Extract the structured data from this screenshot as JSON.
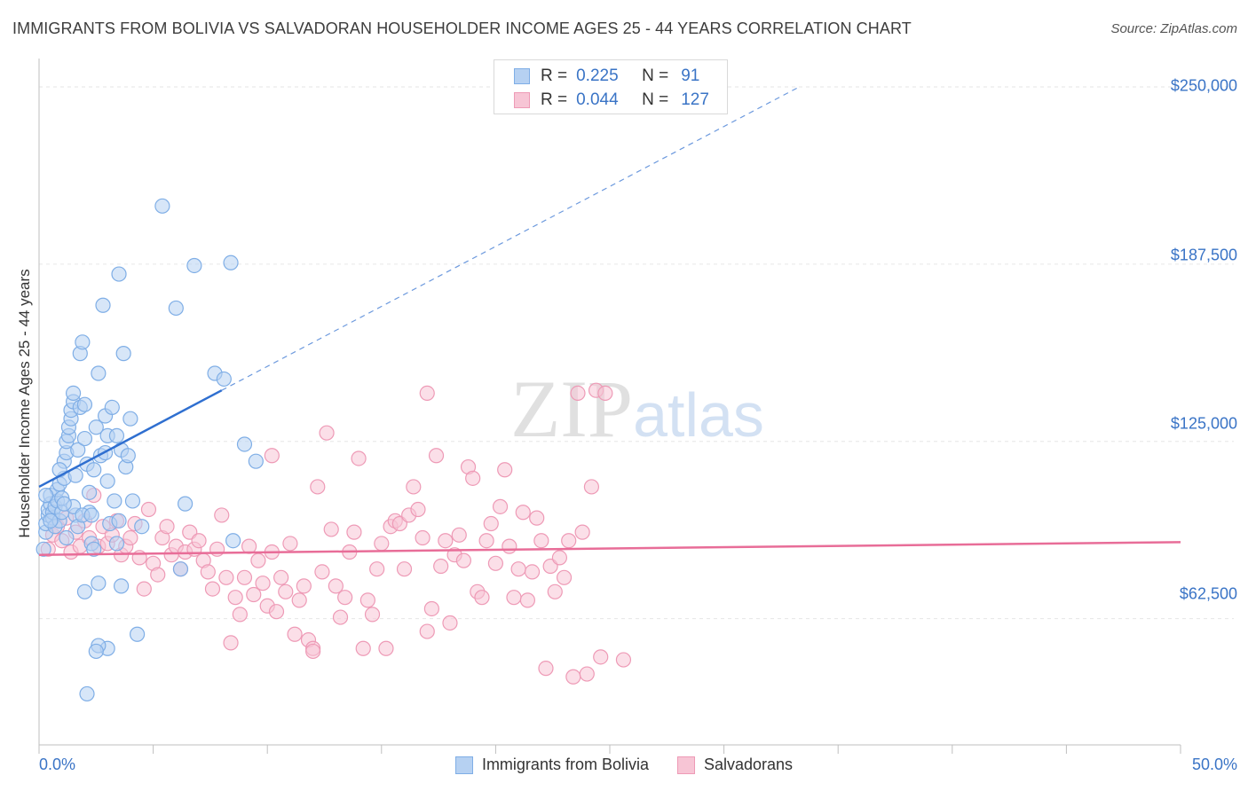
{
  "title": "IMMIGRANTS FROM BOLIVIA VS SALVADORAN HOUSEHOLDER INCOME AGES 25 - 44 YEARS CORRELATION CHART",
  "source": "Source: ZipAtlas.com",
  "watermark": "ZIPatlas",
  "colors": {
    "blue_fill": "#b6d1f2",
    "blue_stroke": "#7faee6",
    "blue_line": "#2f6fd0",
    "pink_fill": "#f7c5d5",
    "pink_stroke": "#ee9ab6",
    "pink_line": "#e86d98",
    "tick_text": "#3a74c6",
    "grid": "#e6e6e6"
  },
  "stats": [
    {
      "r_label": "R =",
      "r_value": "0.225",
      "n_label": "N =",
      "n_value": "91"
    },
    {
      "r_label": "R =",
      "r_value": "0.044",
      "n_label": "N =",
      "n_value": "127"
    }
  ],
  "chart_data": {
    "type": "scatter",
    "title": "IMMIGRANTS FROM BOLIVIA VS SALVADORAN HOUSEHOLDER INCOME AGES 25 - 44 YEARS CORRELATION CHART",
    "xlabel": "",
    "ylabel": "Householder Income Ages 25 - 44 years",
    "xlim": [
      0,
      50
    ],
    "ylim": [
      18000,
      260000
    ],
    "x_tick_labels": [
      "0.0%",
      "50.0%"
    ],
    "y_ticks": [
      62500,
      125000,
      187500,
      250000
    ],
    "y_tick_labels": [
      "$62,500",
      "$125,000",
      "$187,500",
      "$250,000"
    ],
    "grid": true,
    "legend_position": "bottom-center",
    "series": [
      {
        "name": "Immigrants from Bolivia",
        "color": "#7faee6",
        "trend": {
          "x": [
            0,
            8.0
          ],
          "y": [
            109000,
            143000
          ],
          "extended_to": [
            33.3,
            250000
          ]
        },
        "points": [
          [
            0.2,
            87000
          ],
          [
            0.3,
            93000
          ],
          [
            0.3,
            96000
          ],
          [
            0.4,
            99000
          ],
          [
            0.4,
            101000
          ],
          [
            0.5,
            103000
          ],
          [
            0.5,
            106000
          ],
          [
            0.6,
            98000
          ],
          [
            0.6,
            100000
          ],
          [
            0.7,
            95000
          ],
          [
            0.7,
            102000
          ],
          [
            0.8,
            104000
          ],
          [
            0.8,
            108000
          ],
          [
            0.9,
            97000
          ],
          [
            0.9,
            110000
          ],
          [
            1.0,
            100000
          ],
          [
            1.0,
            105000
          ],
          [
            1.1,
            112000
          ],
          [
            1.1,
            118000
          ],
          [
            1.2,
            121000
          ],
          [
            1.2,
            125000
          ],
          [
            1.3,
            127000
          ],
          [
            1.3,
            130000
          ],
          [
            1.4,
            133000
          ],
          [
            1.4,
            136000
          ],
          [
            1.5,
            139000
          ],
          [
            1.5,
            142000
          ],
          [
            1.6,
            113000
          ],
          [
            1.6,
            99000
          ],
          [
            1.7,
            95000
          ],
          [
            1.7,
            122000
          ],
          [
            1.8,
            137000
          ],
          [
            1.8,
            156000
          ],
          [
            1.9,
            160000
          ],
          [
            2.0,
            138000
          ],
          [
            2.0,
            126000
          ],
          [
            2.1,
            117000
          ],
          [
            2.2,
            107000
          ],
          [
            2.2,
            100000
          ],
          [
            2.3,
            89000
          ],
          [
            2.4,
            115000
          ],
          [
            2.5,
            130000
          ],
          [
            2.6,
            149000
          ],
          [
            2.7,
            120000
          ],
          [
            2.8,
            173000
          ],
          [
            2.9,
            134000
          ],
          [
            3.0,
            127000
          ],
          [
            3.0,
            111000
          ],
          [
            3.1,
            96000
          ],
          [
            3.2,
            137000
          ],
          [
            3.3,
            104000
          ],
          [
            3.4,
            89000
          ],
          [
            3.5,
            184000
          ],
          [
            3.6,
            122000
          ],
          [
            3.7,
            156000
          ],
          [
            3.8,
            116000
          ],
          [
            3.9,
            120000
          ],
          [
            4.0,
            133000
          ],
          [
            4.1,
            104000
          ],
          [
            2.4,
            87000
          ],
          [
            2.6,
            75000
          ],
          [
            2.0,
            72000
          ],
          [
            3.0,
            52000
          ],
          [
            2.6,
            53000
          ],
          [
            2.1,
            36000
          ],
          [
            2.5,
            51000
          ],
          [
            3.6,
            74000
          ],
          [
            4.3,
            57000
          ],
          [
            3.4,
            127000
          ],
          [
            5.4,
            208000
          ],
          [
            6.0,
            172000
          ],
          [
            6.2,
            80000
          ],
          [
            6.4,
            103000
          ],
          [
            6.8,
            187000
          ],
          [
            8.4,
            188000
          ],
          [
            7.7,
            149000
          ],
          [
            8.5,
            90000
          ],
          [
            9.0,
            124000
          ],
          [
            9.5,
            118000
          ],
          [
            8.1,
            147000
          ],
          [
            1.2,
            91000
          ],
          [
            0.9,
            115000
          ],
          [
            0.5,
            97000
          ],
          [
            1.5,
            102000
          ],
          [
            1.9,
            99000
          ],
          [
            0.3,
            106000
          ],
          [
            2.9,
            121000
          ],
          [
            3.5,
            97000
          ],
          [
            4.5,
            95000
          ],
          [
            1.1,
            103000
          ],
          [
            2.3,
            99000
          ]
        ]
      },
      {
        "name": "Salvadorans",
        "color": "#ee9ab6",
        "trend": {
          "x": [
            0,
            50
          ],
          "y": [
            85000,
            89500
          ]
        },
        "points": [
          [
            0.4,
            87000
          ],
          [
            0.6,
            92000
          ],
          [
            0.8,
            95000
          ],
          [
            1.0,
            90000
          ],
          [
            1.2,
            98000
          ],
          [
            1.4,
            86000
          ],
          [
            1.6,
            93000
          ],
          [
            1.8,
            88000
          ],
          [
            2.0,
            97000
          ],
          [
            2.2,
            91000
          ],
          [
            2.4,
            106000
          ],
          [
            2.6,
            88000
          ],
          [
            2.8,
            95000
          ],
          [
            3.0,
            89000
          ],
          [
            3.2,
            92000
          ],
          [
            3.4,
            97000
          ],
          [
            3.6,
            85000
          ],
          [
            3.8,
            88000
          ],
          [
            4.0,
            91000
          ],
          [
            4.2,
            96000
          ],
          [
            4.4,
            84000
          ],
          [
            4.6,
            73000
          ],
          [
            4.8,
            101000
          ],
          [
            5.0,
            82000
          ],
          [
            5.2,
            78000
          ],
          [
            5.4,
            91000
          ],
          [
            5.6,
            95000
          ],
          [
            5.8,
            85000
          ],
          [
            6.0,
            88000
          ],
          [
            6.2,
            80000
          ],
          [
            6.4,
            86000
          ],
          [
            6.6,
            93000
          ],
          [
            6.8,
            87000
          ],
          [
            7.0,
            90000
          ],
          [
            7.2,
            83000
          ],
          [
            7.4,
            79000
          ],
          [
            7.6,
            73000
          ],
          [
            7.8,
            87000
          ],
          [
            8.0,
            99000
          ],
          [
            8.2,
            77000
          ],
          [
            8.4,
            54000
          ],
          [
            8.6,
            70000
          ],
          [
            8.8,
            64000
          ],
          [
            9.0,
            77000
          ],
          [
            9.2,
            88000
          ],
          [
            9.4,
            71000
          ],
          [
            9.6,
            83000
          ],
          [
            9.8,
            75000
          ],
          [
            10.0,
            67000
          ],
          [
            10.2,
            86000
          ],
          [
            10.4,
            65000
          ],
          [
            10.6,
            77000
          ],
          [
            10.8,
            72000
          ],
          [
            11.0,
            89000
          ],
          [
            11.2,
            57000
          ],
          [
            11.4,
            69000
          ],
          [
            11.6,
            74000
          ],
          [
            11.8,
            55000
          ],
          [
            12.0,
            52000
          ],
          [
            12.2,
            109000
          ],
          [
            12.4,
            79000
          ],
          [
            12.6,
            128000
          ],
          [
            12.8,
            94000
          ],
          [
            13.0,
            74000
          ],
          [
            13.2,
            63000
          ],
          [
            13.4,
            70000
          ],
          [
            13.6,
            86000
          ],
          [
            13.8,
            93000
          ],
          [
            14.0,
            119000
          ],
          [
            14.2,
            52000
          ],
          [
            14.4,
            69000
          ],
          [
            14.6,
            64000
          ],
          [
            14.8,
            80000
          ],
          [
            15.0,
            89000
          ],
          [
            15.2,
            52000
          ],
          [
            15.4,
            95000
          ],
          [
            15.6,
            97000
          ],
          [
            15.8,
            96000
          ],
          [
            16.0,
            80000
          ],
          [
            16.2,
            99000
          ],
          [
            16.4,
            109000
          ],
          [
            16.6,
            101000
          ],
          [
            16.8,
            91000
          ],
          [
            17.0,
            58000
          ],
          [
            17.2,
            66000
          ],
          [
            17.4,
            120000
          ],
          [
            17.6,
            81000
          ],
          [
            17.8,
            90000
          ],
          [
            18.0,
            61000
          ],
          [
            18.2,
            85000
          ],
          [
            18.4,
            92000
          ],
          [
            18.6,
            83000
          ],
          [
            18.8,
            116000
          ],
          [
            19.0,
            112000
          ],
          [
            19.2,
            72000
          ],
          [
            19.4,
            70000
          ],
          [
            19.6,
            90000
          ],
          [
            19.8,
            96000
          ],
          [
            20.0,
            82000
          ],
          [
            20.2,
            102000
          ],
          [
            20.4,
            115000
          ],
          [
            20.6,
            88000
          ],
          [
            20.8,
            70000
          ],
          [
            21.0,
            80000
          ],
          [
            21.2,
            100000
          ],
          [
            21.4,
            69000
          ],
          [
            21.6,
            79000
          ],
          [
            21.8,
            98000
          ],
          [
            22.0,
            90000
          ],
          [
            22.2,
            45000
          ],
          [
            22.4,
            81000
          ],
          [
            22.6,
            72000
          ],
          [
            22.8,
            84000
          ],
          [
            23.0,
            77000
          ],
          [
            23.2,
            90000
          ],
          [
            23.4,
            42000
          ],
          [
            23.6,
            142000
          ],
          [
            23.8,
            93000
          ],
          [
            24.0,
            43000
          ],
          [
            24.2,
            109000
          ],
          [
            24.4,
            143000
          ],
          [
            24.6,
            49000
          ],
          [
            24.8,
            142000
          ],
          [
            12.0,
            51000
          ],
          [
            10.2,
            120000
          ],
          [
            17.0,
            142000
          ],
          [
            25.6,
            48000
          ]
        ]
      }
    ]
  }
}
